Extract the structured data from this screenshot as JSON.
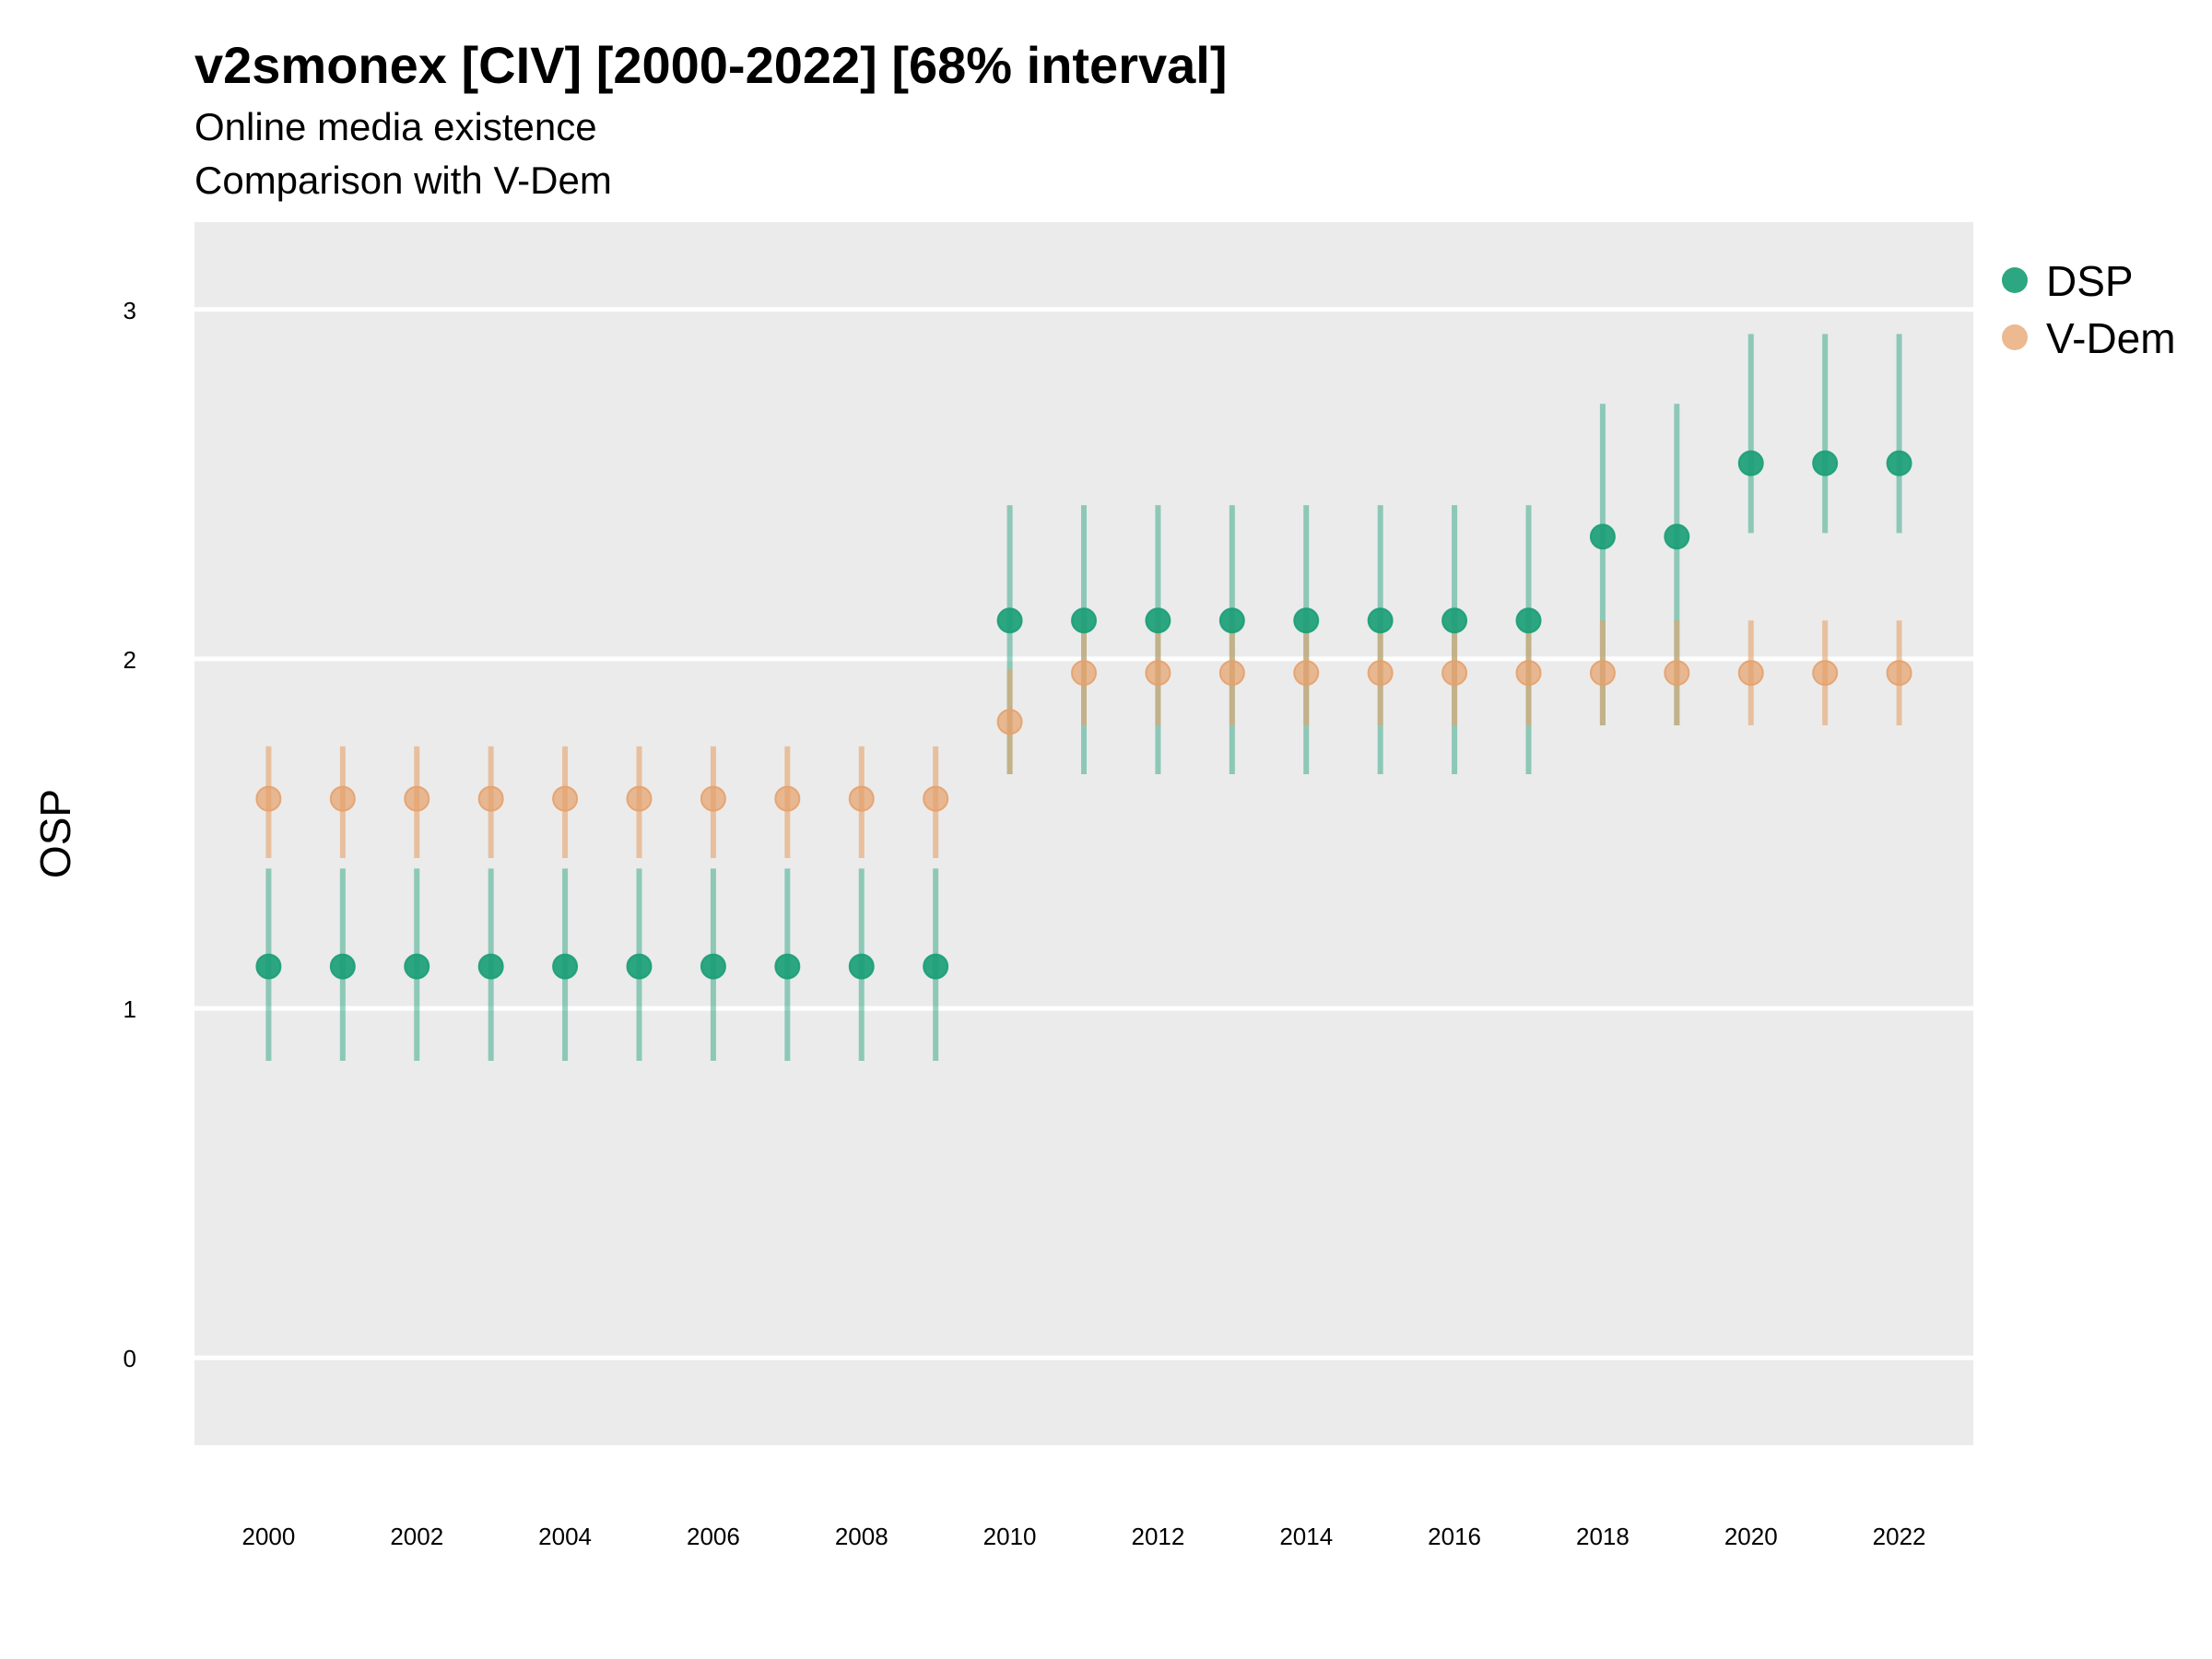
{
  "title": "v2smonex [CIV] [2000-2022] [68% interval]",
  "subtitle_line1": "Online media existence",
  "subtitle_line2": "Comparison with V-Dem",
  "colors": {
    "dsp": "#1b9e77",
    "vdem": "#e6a16b",
    "panel": "#ebebeb",
    "grid": "#ffffff"
  },
  "chart_data": {
    "type": "scatter",
    "title": "v2smonex [CIV] [2000-2022] [68% interval]",
    "subtitle": [
      "Online media existence",
      "Comparison with V-Dem"
    ],
    "xlabel": "",
    "ylabel": "OSP",
    "xlim": [
      1999.0,
      2023.0
    ],
    "ylim": [
      -0.25,
      3.25
    ],
    "x_ticks": [
      2000,
      2002,
      2004,
      2006,
      2008,
      2010,
      2012,
      2014,
      2016,
      2018,
      2020,
      2022
    ],
    "y_ticks": [
      0,
      1,
      2,
      3
    ],
    "legend_position": "right",
    "grid": true,
    "x": [
      2000,
      2001,
      2002,
      2003,
      2004,
      2005,
      2006,
      2007,
      2008,
      2009,
      2010,
      2011,
      2012,
      2013,
      2014,
      2015,
      2016,
      2017,
      2018,
      2019,
      2020,
      2021,
      2022
    ],
    "series": [
      {
        "name": "DSP",
        "values": [
          1.12,
          1.12,
          1.12,
          1.12,
          1.12,
          1.12,
          1.12,
          1.12,
          1.12,
          1.12,
          2.11,
          2.11,
          2.11,
          2.11,
          2.11,
          2.11,
          2.11,
          2.11,
          2.35,
          2.35,
          2.56,
          2.56,
          2.56
        ],
        "lower": [
          0.85,
          0.85,
          0.85,
          0.85,
          0.85,
          0.85,
          0.85,
          0.85,
          0.85,
          0.85,
          1.67,
          1.67,
          1.67,
          1.67,
          1.67,
          1.67,
          1.67,
          1.67,
          1.81,
          1.81,
          2.36,
          2.36,
          2.36
        ],
        "upper": [
          1.4,
          1.4,
          1.4,
          1.4,
          1.4,
          1.4,
          1.4,
          1.4,
          1.4,
          1.4,
          2.44,
          2.44,
          2.44,
          2.44,
          2.44,
          2.44,
          2.44,
          2.44,
          2.73,
          2.73,
          2.93,
          2.93,
          2.93
        ]
      },
      {
        "name": "V-Dem",
        "values": [
          1.6,
          1.6,
          1.6,
          1.6,
          1.6,
          1.6,
          1.6,
          1.6,
          1.6,
          1.6,
          1.82,
          1.96,
          1.96,
          1.96,
          1.96,
          1.96,
          1.96,
          1.96,
          1.96,
          1.96,
          1.96,
          1.96,
          1.96
        ],
        "lower": [
          1.43,
          1.43,
          1.43,
          1.43,
          1.43,
          1.43,
          1.43,
          1.43,
          1.43,
          1.43,
          1.67,
          1.81,
          1.81,
          1.81,
          1.81,
          1.81,
          1.81,
          1.81,
          1.81,
          1.81,
          1.81,
          1.81,
          1.81
        ],
        "upper": [
          1.75,
          1.75,
          1.75,
          1.75,
          1.75,
          1.75,
          1.75,
          1.75,
          1.75,
          1.75,
          1.97,
          2.11,
          2.11,
          2.11,
          2.11,
          2.11,
          2.11,
          2.11,
          2.11,
          2.11,
          2.11,
          2.11,
          2.11
        ]
      }
    ]
  }
}
